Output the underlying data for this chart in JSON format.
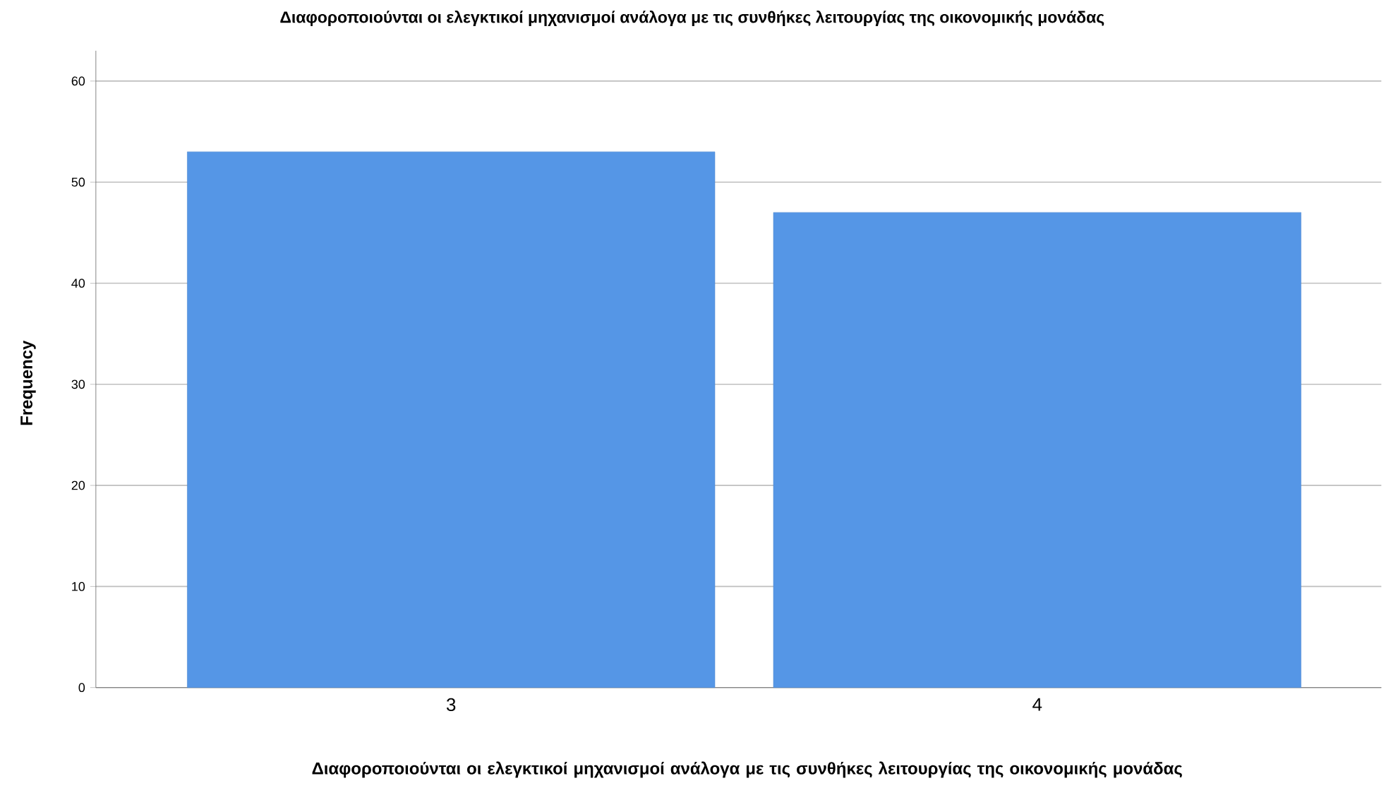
{
  "chart_data": {
    "type": "bar",
    "title": "Διαφοροποιούνται οι ελεγκτικοί μηχανισμοί ανάλογα με τις συνθήκες λειτουργίας της οικονομικής μονάδας",
    "xlabel": "Διαφοροποιούνται οι ελεγκτικοί μηχανισμοί ανάλογα με τις συνθήκες λειτουργίας της οικονομικής μονάδας",
    "ylabel": "Frequency",
    "categories": [
      "3",
      "4"
    ],
    "values": [
      53,
      47
    ],
    "color": "#5596e6",
    "ylim": [
      0,
      63
    ],
    "yticks": [
      0,
      10,
      20,
      30,
      40,
      50,
      60
    ],
    "grid": "y"
  }
}
